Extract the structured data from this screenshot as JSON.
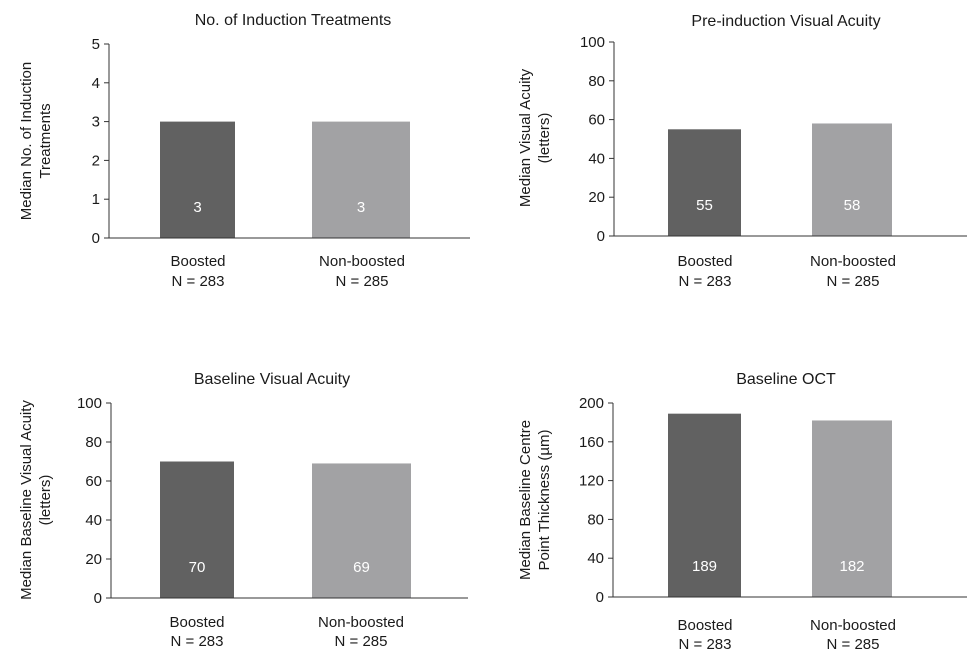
{
  "chart_data": [
    {
      "type": "bar",
      "title": "No. of Induction Treatments",
      "ylabel": [
        "Median No. of Induction",
        "Treatments"
      ],
      "categories": [
        [
          "Boosted",
          "N = 283"
        ],
        [
          "Non-boosted",
          "N = 285"
        ]
      ],
      "values": [
        3,
        3
      ],
      "value_labels": [
        "3",
        "3"
      ],
      "ylim": [
        0,
        5
      ],
      "yticks": [
        0,
        1,
        2,
        3,
        4,
        5
      ],
      "colors": [
        "#616161",
        "#a2a2a4"
      ],
      "grid": false
    },
    {
      "type": "bar",
      "title": "Pre-induction Visual Acuity",
      "ylabel": [
        "Median Visual Acuity",
        "(letters)"
      ],
      "categories": [
        [
          "Boosted",
          "N = 283"
        ],
        [
          "Non-boosted",
          "N = 285"
        ]
      ],
      "values": [
        55,
        58
      ],
      "value_labels": [
        "55",
        "58"
      ],
      "ylim": [
        0,
        100
      ],
      "yticks": [
        0,
        20,
        40,
        60,
        80,
        100
      ],
      "colors": [
        "#616161",
        "#a2a2a4"
      ],
      "grid": false
    },
    {
      "type": "bar",
      "title": "Baseline Visual Acuity",
      "ylabel": [
        "Median Baseline Visual Acuity",
        "(letters)"
      ],
      "categories": [
        [
          "Boosted",
          "N = 283"
        ],
        [
          "Non-boosted",
          "N = 285"
        ]
      ],
      "values": [
        70,
        69
      ],
      "value_labels": [
        "70",
        "69"
      ],
      "ylim": [
        0,
        100
      ],
      "yticks": [
        0,
        20,
        40,
        60,
        80,
        100
      ],
      "colors": [
        "#616161",
        "#a2a2a4"
      ],
      "grid": false
    },
    {
      "type": "bar",
      "title": "Baseline OCT",
      "ylabel": [
        "Median Baseline Centre",
        "Point Thickness (µm)"
      ],
      "categories": [
        [
          "Boosted",
          "N = 283"
        ],
        [
          "Non-boosted",
          "N = 285"
        ]
      ],
      "values": [
        189,
        182
      ],
      "value_labels": [
        "189",
        "182"
      ],
      "ylim": [
        0,
        200
      ],
      "yticks": [
        0,
        40,
        80,
        120,
        160,
        200
      ],
      "colors": [
        "#616161",
        "#a2a2a4"
      ],
      "grid": false
    }
  ]
}
